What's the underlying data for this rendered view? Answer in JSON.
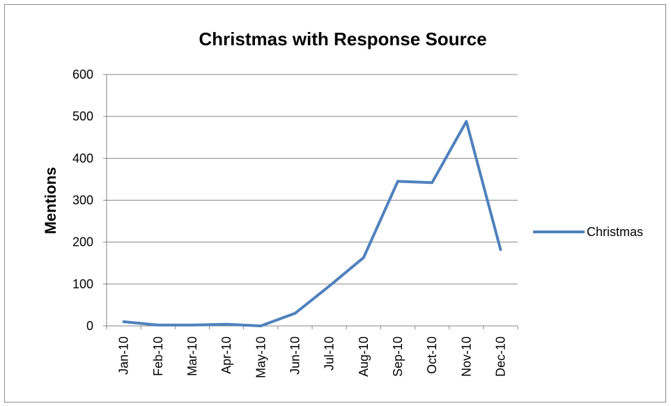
{
  "chart_data": {
    "type": "line",
    "title": "Christmas with Response Source",
    "xlabel": "",
    "ylabel": "Mentions",
    "categories": [
      "Jan-10",
      "Feb-10",
      "Mar-10",
      "Apr-10",
      "May-10",
      "Jun-10",
      "Jul-10",
      "Aug-10",
      "Sep-10",
      "Oct-10",
      "Nov-10",
      "Dec-10"
    ],
    "series": [
      {
        "name": "Christmas",
        "color": "#4f81bd",
        "values": [
          10,
          2,
          2,
          4,
          0,
          30,
          95,
          163,
          345,
          342,
          488,
          182
        ]
      }
    ],
    "ylim": [
      0,
      600
    ],
    "yticks": [
      "0",
      "100",
      "200",
      "300",
      "400",
      "500",
      "600"
    ],
    "grid": true,
    "legend": "right"
  }
}
